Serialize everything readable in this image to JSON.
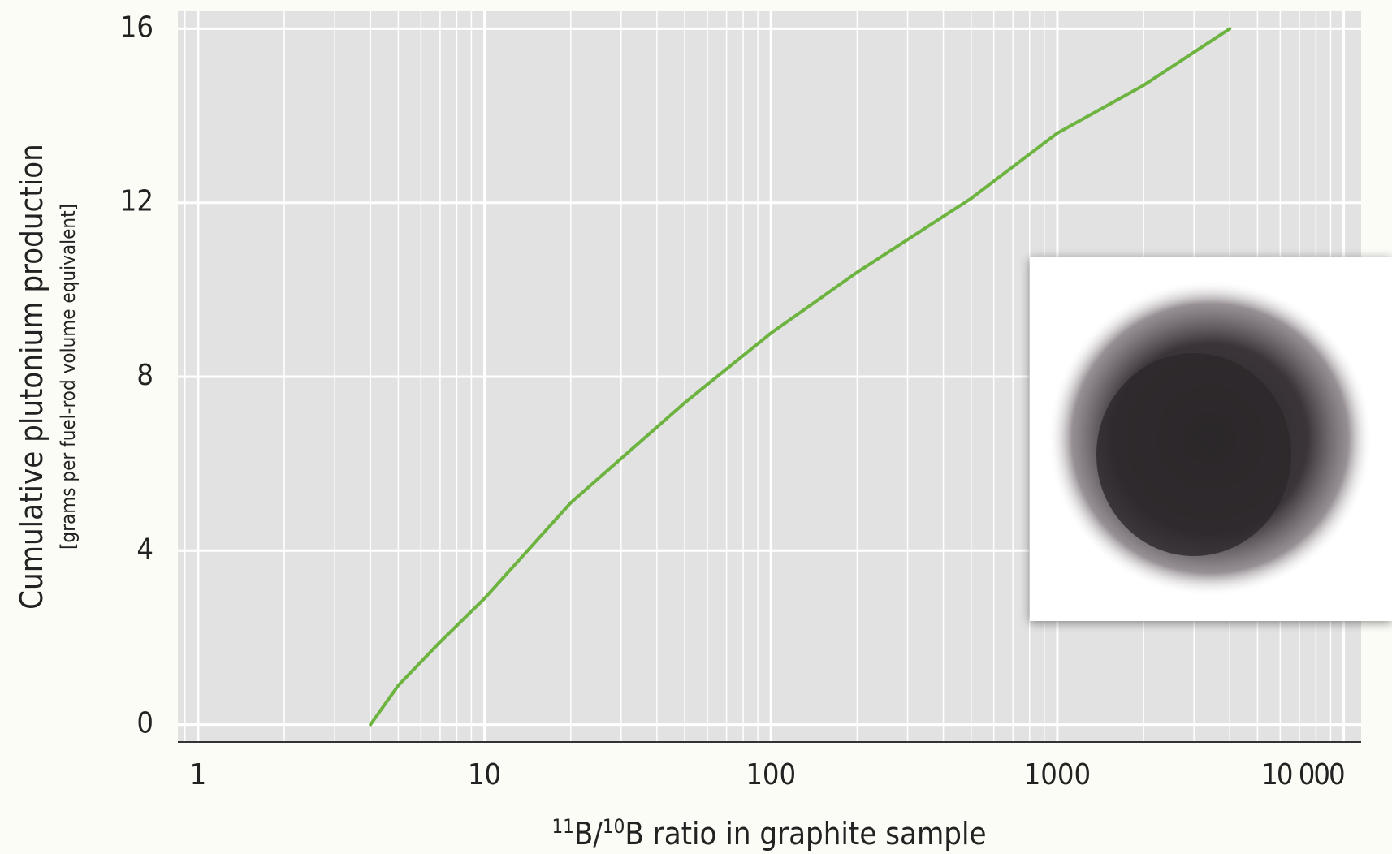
{
  "chart_data": {
    "type": "line",
    "ylabel": "Cumulative plutonium production",
    "ylabel_sub": "[grams per fuel-rod volume equivalent]",
    "xlabel": {
      "sup1": "11",
      "text1": "B/",
      "sup2": "10",
      "text2": "B ratio in graphite sample"
    },
    "x": [
      4,
      5,
      7,
      10,
      20,
      50,
      100,
      200,
      500,
      1000,
      2000,
      4000
    ],
    "values": [
      0,
      0.9,
      1.9,
      2.9,
      5.1,
      7.4,
      9.0,
      10.4,
      12.1,
      13.6,
      14.7,
      16
    ],
    "color": "#6db33f",
    "xscale": "log",
    "xlim": [
      0.85,
      11500
    ],
    "ylim": [
      -0.4,
      16.4
    ],
    "xticks": [
      1,
      10,
      100,
      1000,
      {
        "value": 10000,
        "label": "10 000"
      }
    ],
    "yticks": [
      0,
      4,
      8,
      12,
      16
    ],
    "grid": true
  }
}
